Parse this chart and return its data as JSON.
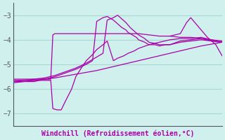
{
  "title": "Windchill (Refroidissement éolien,°C)",
  "bg_color": "#cff0ec",
  "line_color": "#aa00aa",
  "grid_color": "#aad8d4",
  "axis_color": "#555566",
  "ylim": [
    -7.5,
    -2.5
  ],
  "yticks": [
    -7,
    -6,
    -5,
    -4,
    -3
  ],
  "xlim": [
    0,
    100
  ],
  "line1_x": [
    0,
    2,
    5,
    10,
    15,
    18,
    19,
    20,
    22,
    25,
    30,
    35,
    40,
    45,
    50,
    55,
    60,
    65,
    70,
    75,
    80,
    85,
    90,
    95,
    100
  ],
  "line1_y": [
    -5.6,
    -5.6,
    -5.6,
    -5.6,
    -5.6,
    -5.6,
    -3.8,
    -3.75,
    -3.75,
    -3.75,
    -3.75,
    -3.75,
    -3.75,
    -3.75,
    -3.75,
    -3.75,
    -3.75,
    -3.8,
    -3.85,
    -3.85,
    -3.9,
    -3.9,
    -3.95,
    -4.0,
    -4.05
  ],
  "line2_x": [
    0,
    5,
    10,
    15,
    18,
    19,
    21,
    23,
    25,
    28,
    30,
    33,
    35,
    38,
    40,
    43,
    45,
    48,
    50,
    53,
    55,
    58,
    60,
    65,
    70,
    75,
    80,
    85,
    90,
    95,
    100
  ],
  "line2_y": [
    -5.65,
    -5.65,
    -5.65,
    -5.65,
    -5.65,
    -6.8,
    -6.85,
    -6.85,
    -6.5,
    -6.0,
    -5.5,
    -5.1,
    -4.85,
    -4.6,
    -4.4,
    -4.2,
    -4.05,
    -4.85,
    -4.75,
    -4.65,
    -4.55,
    -4.45,
    -4.35,
    -4.2,
    -4.1,
    -4.0,
    -3.95,
    -3.95,
    -3.9,
    -4.0,
    -4.1
  ],
  "line3_x": [
    0,
    5,
    10,
    15,
    20,
    25,
    30,
    35,
    38,
    40,
    43,
    45,
    48,
    50,
    52,
    54,
    55,
    57,
    59,
    60,
    63,
    65,
    68,
    70,
    73,
    75,
    80,
    85,
    90,
    95,
    100
  ],
  "line3_y": [
    -5.7,
    -5.7,
    -5.7,
    -5.6,
    -5.5,
    -5.35,
    -5.2,
    -5.0,
    -4.85,
    -3.25,
    -3.1,
    -3.05,
    -3.2,
    -3.35,
    -3.5,
    -3.6,
    -3.7,
    -3.8,
    -3.9,
    -4.0,
    -4.1,
    -4.2,
    -4.2,
    -4.25,
    -4.2,
    -4.2,
    -4.05,
    -4.0,
    -3.95,
    -4.05,
    -4.1
  ],
  "line4_x": [
    0,
    5,
    10,
    15,
    20,
    25,
    30,
    35,
    40,
    43,
    45,
    48,
    50,
    52,
    54,
    56,
    58,
    60,
    63,
    65,
    68,
    70,
    73,
    75,
    80,
    85,
    90,
    95,
    100
  ],
  "line4_y": [
    -5.7,
    -5.65,
    -5.6,
    -5.55,
    -5.45,
    -5.3,
    -5.15,
    -4.95,
    -4.7,
    -4.55,
    -3.2,
    -3.1,
    -3.0,
    -3.15,
    -3.3,
    -3.5,
    -3.65,
    -3.8,
    -3.95,
    -4.1,
    -4.15,
    -4.2,
    -4.2,
    -4.2,
    -4.1,
    -4.05,
    -4.0,
    -4.05,
    -4.1
  ],
  "line5_x": [
    0,
    10,
    20,
    30,
    40,
    50,
    60,
    70,
    80,
    90,
    100
  ],
  "line5_y": [
    -5.75,
    -5.65,
    -5.55,
    -5.4,
    -5.25,
    -5.05,
    -4.85,
    -4.65,
    -4.45,
    -4.25,
    -4.1
  ],
  "line6_x": [
    75,
    80,
    83,
    85,
    87,
    90,
    93,
    95,
    97,
    100
  ],
  "line6_y": [
    -3.85,
    -3.75,
    -3.3,
    -3.1,
    -3.3,
    -3.6,
    -3.9,
    -4.05,
    -4.2,
    -4.65
  ]
}
